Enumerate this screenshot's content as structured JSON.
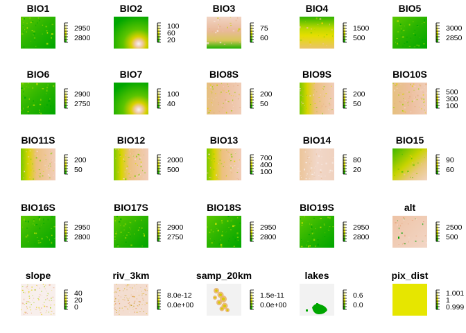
{
  "chart_data": {
    "type": "heatmap",
    "layout": "5 rows x 5 columns of raster map panels",
    "colors": {
      "green": "#00a600",
      "yellow": "#e6e600",
      "tan": "#ecb176",
      "light": "#f2f2f2"
    },
    "panels": [
      {
        "title": "BIO1",
        "legend_ticks": [
          "2950",
          "2800"
        ],
        "style": "green"
      },
      {
        "title": "BIO2",
        "legend_ticks": [
          "100",
          "60",
          "20"
        ],
        "style": "bio2"
      },
      {
        "title": "BIO3",
        "legend_ticks": [
          "75",
          "60"
        ],
        "style": "bio3"
      },
      {
        "title": "BIO4",
        "legend_ticks": [
          "1500",
          "500"
        ],
        "style": "bio4"
      },
      {
        "title": "BIO5",
        "legend_ticks": [
          "3000",
          "2850"
        ],
        "style": "green"
      },
      {
        "title": "BIO6",
        "legend_ticks": [
          "2900",
          "2750"
        ],
        "style": "green"
      },
      {
        "title": "BIO7",
        "legend_ticks": [
          "100",
          "40"
        ],
        "style": "bio2"
      },
      {
        "title": "BIO8S",
        "legend_ticks": [
          "200",
          "50"
        ],
        "style": "tan"
      },
      {
        "title": "BIO9S",
        "legend_ticks": [
          "200",
          "50"
        ],
        "style": "tanleft"
      },
      {
        "title": "BIO10S",
        "legend_ticks": [
          "500",
          "300",
          "100"
        ],
        "style": "tan"
      },
      {
        "title": "BIO11S",
        "legend_ticks": [
          "200",
          "50"
        ],
        "style": "tanleft"
      },
      {
        "title": "BIO12",
        "legend_ticks": [
          "2000",
          "500"
        ],
        "style": "tanleft"
      },
      {
        "title": "BIO13",
        "legend_ticks": [
          "700",
          "400",
          "100"
        ],
        "style": "tanleft"
      },
      {
        "title": "BIO14",
        "legend_ticks": [
          "80",
          "20"
        ],
        "style": "tanlight"
      },
      {
        "title": "BIO15",
        "legend_ticks": [
          "90",
          "60"
        ],
        "style": "bio15"
      },
      {
        "title": "BIO16S",
        "legend_ticks": [
          "2950",
          "2800"
        ],
        "style": "green"
      },
      {
        "title": "BIO17S",
        "legend_ticks": [
          "2900",
          "2750"
        ],
        "style": "green"
      },
      {
        "title": "BIO18S",
        "legend_ticks": [
          "2950",
          "2800"
        ],
        "style": "green"
      },
      {
        "title": "BIO19S",
        "legend_ticks": [
          "2950",
          "2800"
        ],
        "style": "green"
      },
      {
        "title": "alt",
        "legend_ticks": [
          "2500",
          "500"
        ],
        "style": "alt"
      },
      {
        "title": "slope",
        "legend_ticks": [
          "40",
          "20",
          "0"
        ],
        "style": "slope"
      },
      {
        "title": "riv_3km",
        "legend_ticks": [
          "8.0e-12",
          "0.0e+00"
        ],
        "style": "riv"
      },
      {
        "title": "samp_20km",
        "legend_ticks": [
          "1.5e-11",
          "0.0e+00"
        ],
        "style": "samp"
      },
      {
        "title": "lakes",
        "legend_ticks": [
          "0.6",
          "0.0"
        ],
        "style": "lakes"
      },
      {
        "title": "pix_dist",
        "legend_ticks": [
          "1.001",
          "1",
          "0.999"
        ],
        "style": "yellow"
      }
    ]
  }
}
